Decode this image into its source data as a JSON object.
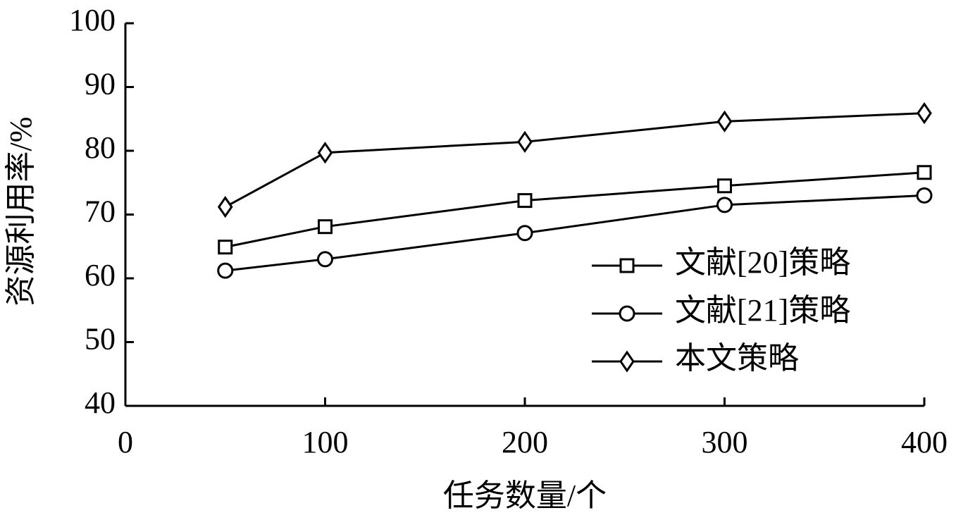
{
  "chart_data": {
    "type": "line",
    "x_label": "任务数量/个",
    "y_label": "资源利用率/%",
    "x": [
      50,
      100,
      200,
      300,
      400
    ],
    "series": [
      {
        "name": "文献[20]策略",
        "color": "#000000",
        "marker": "square",
        "values": [
          64.9,
          68.1,
          72.2,
          74.5,
          76.6
        ]
      },
      {
        "name": "文献[21]策略",
        "color": "#000000",
        "marker": "circle",
        "values": [
          61.2,
          63.0,
          67.1,
          71.5,
          73.0
        ]
      },
      {
        "name": "本文策略",
        "color": "#000000",
        "marker": "diamond",
        "values": [
          71.2,
          79.7,
          81.4,
          84.6,
          85.9
        ]
      }
    ],
    "xlim": [
      0,
      400
    ],
    "xticks": [
      0,
      100,
      200,
      300,
      400
    ],
    "ylim": [
      40,
      100
    ],
    "yticks": [
      40,
      50,
      60,
      70,
      80,
      90,
      100
    ],
    "grid": false,
    "legend": "right"
  }
}
